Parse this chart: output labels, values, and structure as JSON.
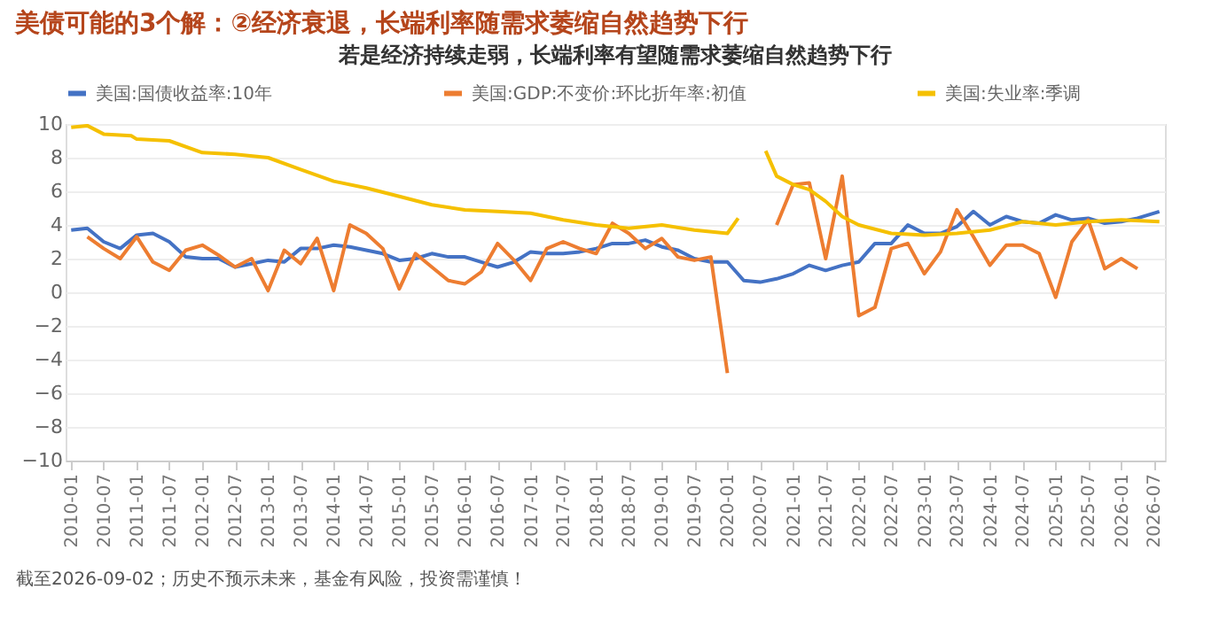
{
  "chart_data": {
    "type": "line",
    "title": "美债可能的3个解：②经济衰退，长端利率随需求萎缩自然趋势下行",
    "subtitle": "若是经济持续走弱，长端利率有望随需求萎缩自然趋势下行",
    "annotations": [
      "截至2026-09-02；历史不预示未来，基金有风险，投资需谨慎！"
    ],
    "legend": "top",
    "grid": "y",
    "marker": "none",
    "line_style": "solid",
    "xlim": [
      "2009-12",
      "2026-09"
    ],
    "xticks": [
      "2010-01",
      "2010-07",
      "2011-01",
      "2011-07",
      "2012-01",
      "2012-07",
      "2013-01",
      "2013-07",
      "2014-01",
      "2014-07",
      "2015-01",
      "2015-07",
      "2016-01",
      "2016-07",
      "2017-01",
      "2017-07",
      "2018-01",
      "2018-07",
      "2019-01",
      "2019-07",
      "2020-01",
      "2020-07",
      "2021-01",
      "2021-07",
      "2022-01",
      "2022-07",
      "2023-01",
      "2023-07",
      "2024-01",
      "2024-07",
      "2025-01",
      "2025-07",
      "2026-01",
      "2026-07"
    ],
    "ylim": [
      -10,
      10
    ],
    "yticks": [
      -10,
      -8,
      -6,
      -4,
      -2,
      0,
      2,
      4,
      6,
      8,
      10
    ],
    "series": [
      {
        "name": "美国:国债收益率:10年",
        "color": "#4472c4",
        "x": [
          "2010-01",
          "2010-04",
          "2010-07",
          "2010-10",
          "2011-01",
          "2011-04",
          "2011-07",
          "2011-10",
          "2012-01",
          "2012-04",
          "2012-07",
          "2012-10",
          "2013-01",
          "2013-04",
          "2013-07",
          "2013-10",
          "2014-01",
          "2014-04",
          "2014-07",
          "2014-10",
          "2015-01",
          "2015-04",
          "2015-07",
          "2015-10",
          "2016-01",
          "2016-04",
          "2016-07",
          "2016-10",
          "2017-01",
          "2017-04",
          "2017-07",
          "2017-10",
          "2018-01",
          "2018-04",
          "2018-07",
          "2018-10",
          "2019-01",
          "2019-04",
          "2019-07",
          "2019-10",
          "2020-01",
          "2020-04",
          "2020-07",
          "2020-10",
          "2021-01",
          "2021-04",
          "2021-07",
          "2021-10",
          "2022-01",
          "2022-04",
          "2022-07",
          "2022-10",
          "2023-01",
          "2023-04",
          "2023-07",
          "2023-10",
          "2024-01",
          "2024-04",
          "2024-07",
          "2024-10",
          "2025-01",
          "2025-04",
          "2025-07",
          "2025-10",
          "2026-01",
          "2026-04",
          "2026-08"
        ],
        "values": [
          3.7,
          3.8,
          3.0,
          2.6,
          3.4,
          3.5,
          3.0,
          2.1,
          2.0,
          2.0,
          1.5,
          1.7,
          1.9,
          1.8,
          2.6,
          2.6,
          2.8,
          2.7,
          2.5,
          2.3,
          1.9,
          2.0,
          2.3,
          2.1,
          2.1,
          1.8,
          1.5,
          1.8,
          2.4,
          2.3,
          2.3,
          2.4,
          2.6,
          2.9,
          2.9,
          3.1,
          2.7,
          2.5,
          2.0,
          1.8,
          1.8,
          0.7,
          0.6,
          0.8,
          1.1,
          1.6,
          1.3,
          1.6,
          1.8,
          2.9,
          2.9,
          4.0,
          3.5,
          3.5,
          3.9,
          4.8,
          4.0,
          4.5,
          4.2,
          4.1,
          4.6,
          4.3,
          4.4,
          4.1,
          4.2,
          4.4,
          4.8
        ]
      },
      {
        "name": "美国:GDP:不变价:环比折年率:初值",
        "color": "#ed7d31",
        "x": [
          "2010-04",
          "2010-07",
          "2010-10",
          "2011-01",
          "2011-04",
          "2011-07",
          "2011-10",
          "2012-01",
          "2012-04",
          "2012-07",
          "2012-10",
          "2013-01",
          "2013-04",
          "2013-07",
          "2013-10",
          "2014-01",
          "2014-04",
          "2014-07",
          "2014-10",
          "2015-01",
          "2015-04",
          "2015-07",
          "2015-10",
          "2016-01",
          "2016-04",
          "2016-07",
          "2016-10",
          "2017-01",
          "2017-04",
          "2017-07",
          "2017-10",
          "2018-01",
          "2018-04",
          "2018-07",
          "2018-10",
          "2019-01",
          "2019-04",
          "2019-07",
          "2019-10",
          "2020-01",
          "2020-04",
          "2020-07",
          "2020-10",
          "2021-01",
          "2021-04",
          "2021-07",
          "2021-10",
          "2022-01",
          "2022-04",
          "2022-07",
          "2022-10",
          "2023-01",
          "2023-04",
          "2023-07",
          "2023-10",
          "2024-01",
          "2024-04",
          "2024-07",
          "2024-10",
          "2025-01",
          "2025-04",
          "2025-07",
          "2025-10",
          "2026-01",
          "2026-04"
        ],
        "values": [
          3.3,
          2.6,
          2.0,
          3.3,
          1.8,
          1.3,
          2.5,
          2.8,
          2.2,
          1.5,
          2.0,
          0.1,
          2.5,
          1.7,
          3.2,
          0.1,
          4.0,
          3.5,
          2.6,
          0.2,
          2.3,
          1.5,
          0.7,
          0.5,
          1.2,
          2.9,
          1.9,
          0.7,
          2.6,
          3.0,
          2.6,
          2.3,
          4.1,
          3.5,
          2.6,
          3.2,
          2.1,
          1.9,
          2.1,
          -4.8,
          null,
          null,
          4.0,
          6.4,
          6.5,
          2.0,
          6.9,
          -1.4,
          -0.9,
          2.6,
          2.9,
          1.1,
          2.4,
          4.9,
          3.3,
          1.6,
          2.8,
          2.8,
          2.3,
          -0.3,
          3.0,
          4.3,
          1.4,
          2.0,
          1.4
        ]
      },
      {
        "name": "美国:失业率:季调",
        "color": "#f5c000",
        "x": [
          "2010-01",
          "2010-04",
          "2010-07",
          "2010-12",
          "2011-01",
          "2011-07",
          "2012-01",
          "2012-07",
          "2013-01",
          "2013-07",
          "2014-01",
          "2014-07",
          "2015-01",
          "2015-07",
          "2016-01",
          "2016-07",
          "2017-01",
          "2017-07",
          "2018-01",
          "2018-07",
          "2019-01",
          "2019-07",
          "2020-01",
          "2020-03",
          "2020-04",
          "2020-06",
          "2020-08",
          "2020-10",
          "2021-01",
          "2021-04",
          "2021-07",
          "2021-10",
          "2022-01",
          "2022-07",
          "2023-01",
          "2023-07",
          "2024-01",
          "2024-07",
          "2025-01",
          "2025-07",
          "2026-01",
          "2026-08"
        ],
        "values": [
          9.8,
          9.9,
          9.4,
          9.3,
          9.1,
          9.0,
          8.3,
          8.2,
          8.0,
          7.3,
          6.6,
          6.2,
          5.7,
          5.2,
          4.9,
          4.8,
          4.7,
          4.3,
          4.0,
          3.8,
          4.0,
          3.7,
          3.5,
          4.4,
          null,
          null,
          8.4,
          6.9,
          6.4,
          6.1,
          5.4,
          4.5,
          4.0,
          3.5,
          3.4,
          3.5,
          3.7,
          4.2,
          4.0,
          4.2,
          4.3,
          4.2
        ]
      }
    ]
  }
}
